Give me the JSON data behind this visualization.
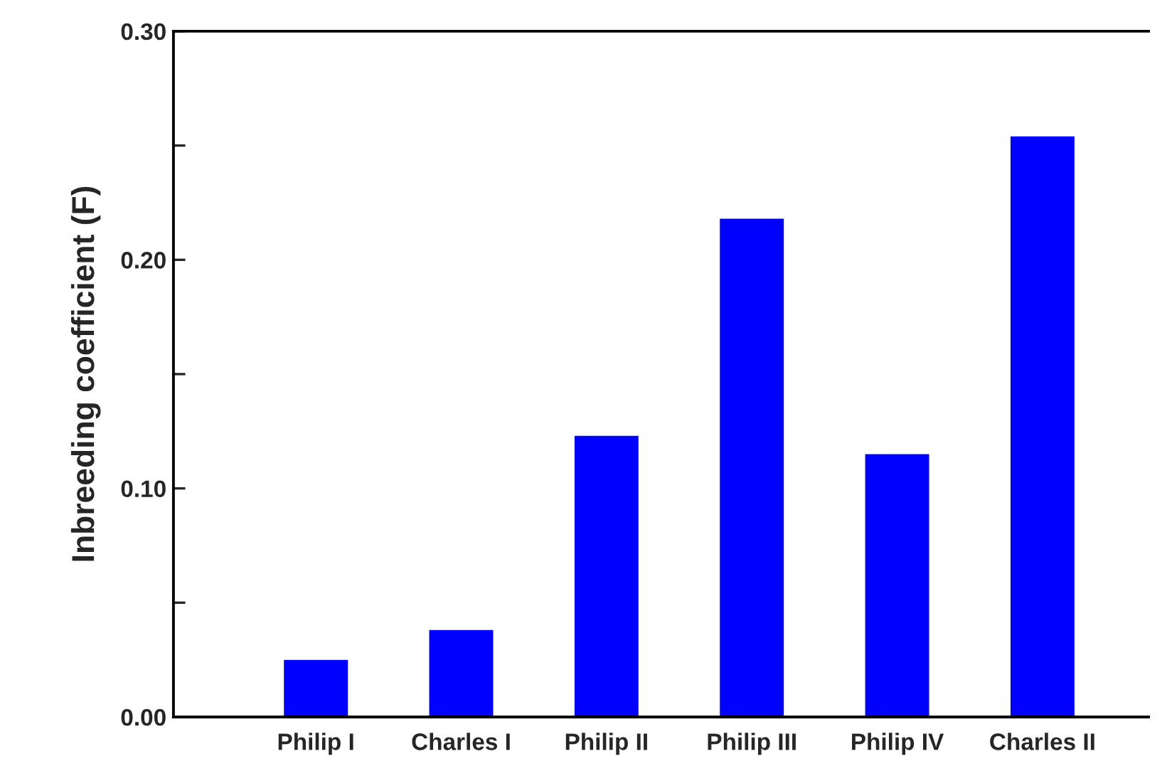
{
  "chart_data": {
    "type": "bar",
    "ylabel": "Inbreeding coefficient (F)",
    "categories": [
      "Philip I",
      "Charles I",
      "Philip II",
      "Philip III",
      "Philip IV",
      "Charles II"
    ],
    "values": [
      0.025,
      0.038,
      0.123,
      0.218,
      0.115,
      0.254
    ],
    "color": "#0000ff",
    "ylim": [
      0,
      0.3
    ],
    "yticks": [
      {
        "value": 0,
        "label": "0.00"
      },
      {
        "value": 0.05,
        "label": null
      },
      {
        "value": 0.1,
        "label": "0.10"
      },
      {
        "value": 0.15,
        "label": null
      },
      {
        "value": 0.2,
        "label": "0.20"
      },
      {
        "value": 0.25,
        "label": null
      },
      {
        "value": 0.3,
        "label": "0.30"
      }
    ],
    "grid": false,
    "legend": false
  }
}
